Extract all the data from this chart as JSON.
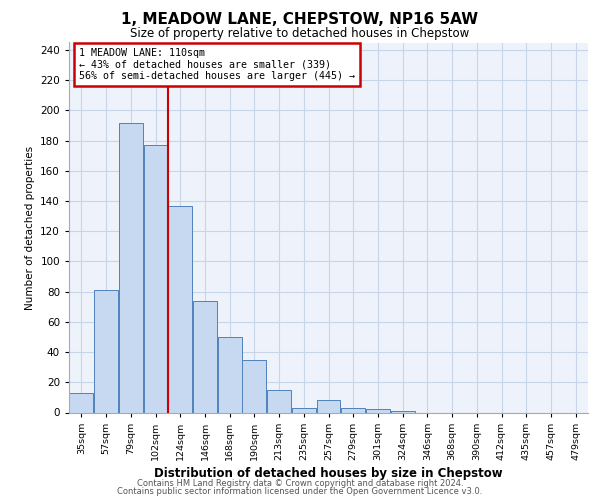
{
  "title": "1, MEADOW LANE, CHEPSTOW, NP16 5AW",
  "subtitle": "Size of property relative to detached houses in Chepstow",
  "xlabel": "Distribution of detached houses by size in Chepstow",
  "ylabel": "Number of detached properties",
  "bar_labels": [
    "35sqm",
    "57sqm",
    "79sqm",
    "102sqm",
    "124sqm",
    "146sqm",
    "168sqm",
    "190sqm",
    "213sqm",
    "235sqm",
    "257sqm",
    "279sqm",
    "301sqm",
    "324sqm",
    "346sqm",
    "368sqm",
    "390sqm",
    "412sqm",
    "435sqm",
    "457sqm",
    "479sqm"
  ],
  "bar_heights": [
    13,
    81,
    192,
    177,
    137,
    74,
    50,
    35,
    15,
    3,
    8,
    3,
    2,
    1,
    0,
    0,
    0,
    0,
    0,
    0,
    0
  ],
  "bar_color": "#c6d9f1",
  "bar_edge_color": "#4f81bd",
  "vline_x": 3.5,
  "vline_color": "#cc0000",
  "annotation_line1": "1 MEADOW LANE: 110sqm",
  "annotation_line2": "← 43% of detached houses are smaller (339)",
  "annotation_line3": "56% of semi-detached houses are larger (445) →",
  "annotation_box_color": "#cc0000",
  "ylim": [
    0,
    245
  ],
  "yticks": [
    0,
    20,
    40,
    60,
    80,
    100,
    120,
    140,
    160,
    180,
    200,
    220,
    240
  ],
  "footer_line1": "Contains HM Land Registry data © Crown copyright and database right 2024.",
  "footer_line2": "Contains public sector information licensed under the Open Government Licence v3.0.",
  "grid_color": "#c8d4e8",
  "bg_color": "#eef2fb"
}
